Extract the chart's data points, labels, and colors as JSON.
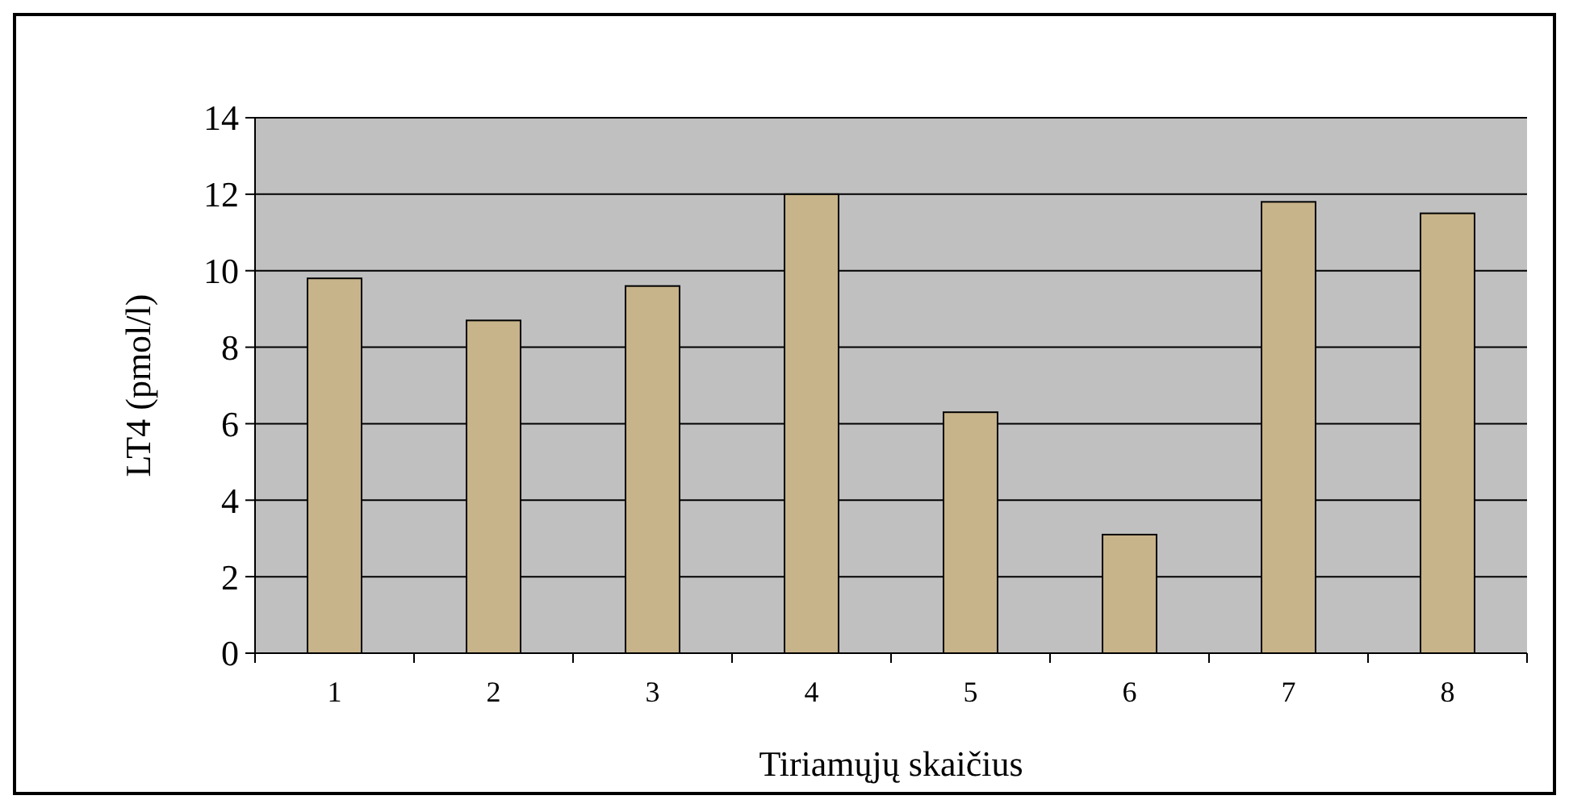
{
  "chart_data": {
    "type": "bar",
    "xlabel": "Tiriamųjų skaičius",
    "ylabel": "LT4 (pmol/l)",
    "categories": [
      "1",
      "2",
      "3",
      "4",
      "5",
      "6",
      "7",
      "8"
    ],
    "values": [
      9.8,
      8.7,
      9.6,
      12,
      6.3,
      3.1,
      11.8,
      11.5
    ],
    "color": "#c8b48a",
    "ylim": [
      0,
      14
    ],
    "yticks": [
      0,
      2,
      4,
      6,
      8,
      10,
      12,
      14
    ],
    "grid": "y"
  }
}
